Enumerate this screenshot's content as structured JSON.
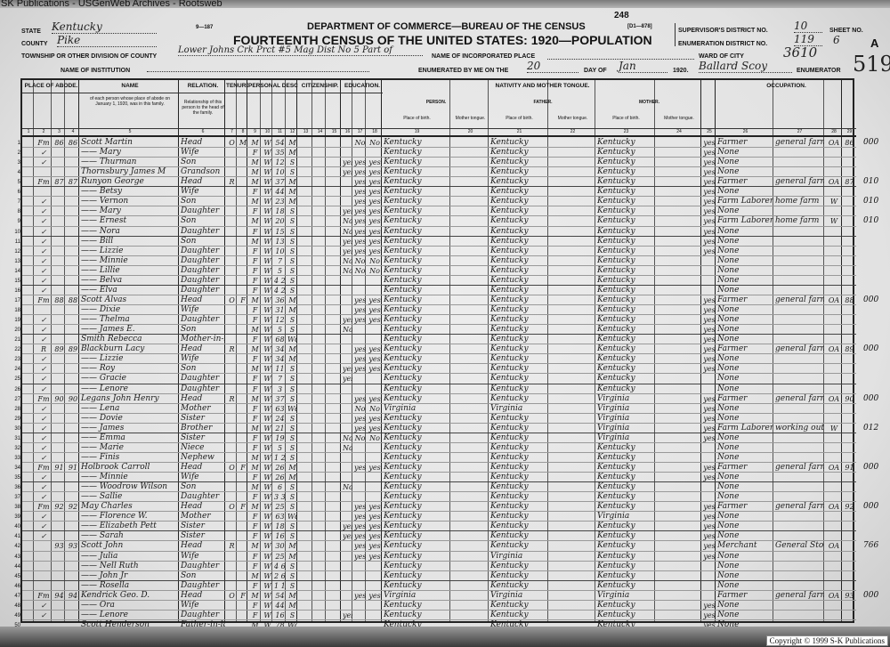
{
  "watermark": "SK Publications - USGenWeb Archives - Rootsweb",
  "copyright": "Copyright © 1999 S-K Publications",
  "form_number": "9—187",
  "stamp_number": "248",
  "form_code": "[D1—878]",
  "header": {
    "department": "DEPARTMENT OF COMMERCE—BUREAU OF THE CENSUS",
    "title": "FOURTEENTH CENSUS OF THE UNITED STATES: 1920—POPULATION",
    "state_label": "STATE",
    "state": "Kentucky",
    "county_label": "COUNTY",
    "county": "Pike",
    "township_label": "TOWNSHIP OR OTHER DIVISION OF COUNTY",
    "township": "Lower Johns Crk Prct #5 Mag Dist No 5 Part of",
    "incorporated_label": "NAME OF INCORPORATED PLACE",
    "institution_label": "NAME OF INSTITUTION",
    "enumerated_label": "ENUMERATED BY ME ON THE",
    "enumerated_day": "20",
    "day_of_label": "DAY OF",
    "month": "Jan",
    "year": "1920.",
    "enumerator": "Ballard Scoy",
    "enumerator_label": "ENUMERATOR",
    "supervisor_label": "SUPERVISOR'S DISTRICT NO.",
    "supervisor_district": "10",
    "ed_label": "ENUMERATION DISTRICT NO.",
    "enumeration_district": "119",
    "sheet_label": "SHEET NO.",
    "sheet": "6",
    "sheet_side": "A",
    "ward_label": "WARD OF CITY",
    "ward_note": "3610",
    "corner_note": "519"
  },
  "groups": [
    "PLACE OF ABODE.",
    "NAME",
    "RELATION.",
    "TENURE.",
    "PERSONAL DESCRIPTION.",
    "CITIZENSHIP.",
    "EDUCATION.",
    "NATIVITY AND MOTHER TONGUE.",
    "OCCUPATION."
  ],
  "subheads": {
    "name_desc": "of each person whose place of abode on January 1, 1920, was in this family.",
    "relation_desc": "Relationship of this person to the head of the family.",
    "person": "PERSON.",
    "father": "FATHER.",
    "mother": "MOTHER.",
    "place_of_birth": "Place of birth.",
    "mother_tongue": "Mother tongue."
  },
  "column_numbers": [
    "1",
    "2",
    "3",
    "4",
    "5",
    "6",
    "7",
    "8",
    "9",
    "10",
    "11",
    "12",
    "13",
    "14",
    "15",
    "16",
    "17",
    "18",
    "19",
    "20",
    "21",
    "22",
    "23",
    "24",
    "25",
    "26",
    "27",
    "28",
    "29"
  ],
  "row_fields": [
    "home",
    "dwelling",
    "family",
    "name",
    "relation",
    "owned",
    "mortgage",
    "sex",
    "color",
    "age",
    "marital",
    "school",
    "read",
    "write",
    "birthplace",
    "father_birthplace",
    "mother_birthplace",
    "english",
    "occupation",
    "industry",
    "class",
    "farm",
    "margin"
  ],
  "rows": [
    [
      "Fm",
      "86",
      "86",
      "Scott Martin",
      "Head",
      "O",
      "M",
      "M",
      "W",
      "54",
      "M",
      "",
      "No",
      "No",
      "Kentucky",
      "Kentucky",
      "Kentucky",
      "yes",
      "Farmer",
      "general farm",
      "OA",
      "86",
      "000"
    ],
    [
      "✓",
      "",
      "",
      "—— Mary",
      "Wife",
      "",
      "",
      "F",
      "W",
      "35",
      "M",
      "",
      "",
      "",
      "Kentucky",
      "Kentucky",
      "Kentucky",
      "yes",
      "None",
      "",
      "",
      "",
      ""
    ],
    [
      "✓",
      "",
      "",
      "—— Thurman",
      "Son",
      "",
      "",
      "M",
      "W",
      "12",
      "S",
      "yes",
      "yes",
      "yes",
      "Kentucky",
      "Kentucky",
      "Kentucky",
      "yes",
      "None",
      "",
      "",
      "",
      ""
    ],
    [
      "",
      "",
      "",
      "Thornsbury James M",
      "Grandson",
      "",
      "",
      "M",
      "W",
      "10",
      "S",
      "yes",
      "yes",
      "yes",
      "Kentucky",
      "Kentucky",
      "Kentucky",
      "yes",
      "None",
      "",
      "",
      "",
      ""
    ],
    [
      "Fm",
      "87",
      "87",
      "Runyon George",
      "Head",
      "R",
      "",
      "M",
      "W",
      "37",
      "M",
      "",
      "yes",
      "yes",
      "Kentucky",
      "Kentucky",
      "Kentucky",
      "yes",
      "Farmer",
      "general farm",
      "OA",
      "87",
      "010"
    ],
    [
      "",
      "",
      "",
      "—— Betsy",
      "Wife",
      "",
      "",
      "F",
      "W",
      "44",
      "M",
      "",
      "yes",
      "yes",
      "Kentucky",
      "Kentucky",
      "Kentucky",
      "yes",
      "None",
      "",
      "",
      "",
      ""
    ],
    [
      "✓",
      "",
      "",
      "—— Vernon",
      "Son",
      "",
      "",
      "M",
      "W",
      "23",
      "M",
      "",
      "yes",
      "yes",
      "Kentucky",
      "Kentucky",
      "Kentucky",
      "yes",
      "Farm Laborer",
      "home farm",
      "W",
      "",
      "010"
    ],
    [
      "✓",
      "",
      "",
      "—— Mary",
      "Daughter",
      "",
      "",
      "F",
      "W",
      "18",
      "S",
      "yes",
      "yes",
      "yes",
      "Kentucky",
      "Kentucky",
      "Kentucky",
      "yes",
      "None",
      "",
      "",
      "",
      ""
    ],
    [
      "✓",
      "",
      "",
      "—— Ernest",
      "Son",
      "",
      "",
      "M",
      "W",
      "20",
      "S",
      "No",
      "yes",
      "yes",
      "Kentucky",
      "Kentucky",
      "Kentucky",
      "yes",
      "Farm Laborer",
      "home farm",
      "W",
      "",
      "010"
    ],
    [
      "✓",
      "",
      "",
      "—— Nora",
      "Daughter",
      "",
      "",
      "F",
      "W",
      "15",
      "S",
      "No",
      "yes",
      "yes",
      "Kentucky",
      "Kentucky",
      "Kentucky",
      "yes",
      "None",
      "",
      "",
      "",
      ""
    ],
    [
      "✓",
      "",
      "",
      "—— Bill",
      "Son",
      "",
      "",
      "M",
      "W",
      "13",
      "S",
      "yes",
      "yes",
      "yes",
      "Kentucky",
      "Kentucky",
      "Kentucky",
      "yes",
      "None",
      "",
      "",
      "",
      ""
    ],
    [
      "✓",
      "",
      "",
      "—— Lizzie",
      "Daughter",
      "",
      "",
      "F",
      "W",
      "10",
      "S",
      "yes",
      "yes",
      "yes",
      "Kentucky",
      "Kentucky",
      "Kentucky",
      "yes",
      "None",
      "",
      "",
      "",
      ""
    ],
    [
      "✓",
      "",
      "",
      "—— Minnie",
      "Daughter",
      "",
      "",
      "F",
      "W",
      "7",
      "S",
      "No",
      "No",
      "No",
      "Kentucky",
      "Kentucky",
      "Kentucky",
      "",
      "None",
      "",
      "",
      "",
      ""
    ],
    [
      "✓",
      "",
      "",
      "—— Lillie",
      "Daughter",
      "",
      "",
      "F",
      "W",
      "5",
      "S",
      "No",
      "No",
      "No",
      "Kentucky",
      "Kentucky",
      "Kentucky",
      "",
      "None",
      "",
      "",
      "",
      ""
    ],
    [
      "✓",
      "",
      "",
      "—— Belva",
      "Daughter",
      "",
      "",
      "F",
      "W",
      "4 2/12",
      "S",
      "",
      "",
      "",
      "Kentucky",
      "Kentucky",
      "Kentucky",
      "",
      "None",
      "",
      "",
      "",
      ""
    ],
    [
      "✓",
      "",
      "",
      "—— Elva",
      "Daughter",
      "",
      "",
      "F",
      "W",
      "4 2/12",
      "S",
      "",
      "",
      "",
      "Kentucky",
      "Kentucky",
      "Kentucky",
      "",
      "None",
      "",
      "",
      "",
      ""
    ],
    [
      "Fm",
      "88",
      "88",
      "Scott Alvas",
      "Head",
      "O",
      "F",
      "M",
      "W",
      "36",
      "M",
      "",
      "yes",
      "yes",
      "Kentucky",
      "Kentucky",
      "Kentucky",
      "yes",
      "Farmer",
      "general farm",
      "OA",
      "88",
      "000"
    ],
    [
      "",
      "",
      "",
      "—— Dixie",
      "Wife",
      "",
      "",
      "F",
      "W",
      "31",
      "M",
      "",
      "yes",
      "yes",
      "Kentucky",
      "Kentucky",
      "Kentucky",
      "yes",
      "None",
      "",
      "",
      "",
      ""
    ],
    [
      "✓",
      "",
      "",
      "—— Thelma",
      "Daughter",
      "",
      "",
      "F",
      "W",
      "12",
      "S",
      "yes",
      "yes",
      "yes",
      "Kentucky",
      "Kentucky",
      "Kentucky",
      "yes",
      "None",
      "",
      "",
      "",
      ""
    ],
    [
      "✓",
      "",
      "",
      "—— James E.",
      "Son",
      "",
      "",
      "M",
      "W",
      "5",
      "S",
      "No",
      "",
      "",
      "Kentucky",
      "Kentucky",
      "Kentucky",
      "yes",
      "None",
      "",
      "",
      "",
      ""
    ],
    [
      "✓",
      "",
      "",
      "Smith Rebecca",
      "Mother-in-law",
      "",
      "",
      "F",
      "W",
      "68",
      "Wd",
      "",
      "",
      "",
      "Kentucky",
      "Kentucky",
      "Kentucky",
      "yes",
      "None",
      "",
      "",
      "",
      ""
    ],
    [
      "R",
      "89",
      "89",
      "Blackburn Lacy",
      "Head",
      "R",
      "",
      "M",
      "W",
      "34",
      "M",
      "",
      "yes",
      "yes",
      "Kentucky",
      "Kentucky",
      "Kentucky",
      "yes",
      "Farmer",
      "general farm",
      "OA",
      "89",
      "000"
    ],
    [
      "✓",
      "",
      "",
      "—— Lizzie",
      "Wife",
      "",
      "",
      "F",
      "W",
      "34",
      "M",
      "",
      "yes",
      "yes",
      "Kentucky",
      "Kentucky",
      "Kentucky",
      "yes",
      "None",
      "",
      "",
      "",
      ""
    ],
    [
      "✓",
      "",
      "",
      "—— Roy",
      "Son",
      "",
      "",
      "M",
      "W",
      "11",
      "S",
      "yes",
      "yes",
      "yes",
      "Kentucky",
      "Kentucky",
      "Kentucky",
      "yes",
      "None",
      "",
      "",
      "",
      ""
    ],
    [
      "✓",
      "",
      "",
      "—— Gracie",
      "Daughter",
      "",
      "",
      "F",
      "W",
      "7",
      "S",
      "yes",
      "",
      "",
      "Kentucky",
      "Kentucky",
      "Kentucky",
      "",
      "None",
      "",
      "",
      "",
      ""
    ],
    [
      "✓",
      "",
      "",
      "—— Lenore",
      "Daughter",
      "",
      "",
      "F",
      "W",
      "3",
      "S",
      "",
      "",
      "",
      "Kentucky",
      "Kentucky",
      "Kentucky",
      "",
      "None",
      "",
      "",
      "",
      ""
    ],
    [
      "Fm",
      "90",
      "90",
      "Legans John Henry",
      "Head",
      "R",
      "",
      "M",
      "W",
      "37",
      "S",
      "",
      "yes",
      "yes",
      "Kentucky",
      "Kentucky",
      "Virginia",
      "yes",
      "Farmer",
      "general farm",
      "OA",
      "90",
      "000"
    ],
    [
      "✓",
      "",
      "",
      "—— Lena",
      "Mother",
      "",
      "",
      "F",
      "W",
      "63",
      "Wd",
      "",
      "No",
      "No",
      "Virginia",
      "Virginia",
      "Virginia",
      "yes",
      "None",
      "",
      "",
      "",
      ""
    ],
    [
      "✓",
      "",
      "",
      "—— Dovie",
      "Sister",
      "",
      "",
      "F",
      "W",
      "24",
      "S",
      "",
      "yes",
      "yes",
      "Kentucky",
      "Kentucky",
      "Virginia",
      "yes",
      "None",
      "",
      "",
      "",
      ""
    ],
    [
      "✓",
      "",
      "",
      "—— James",
      "Brother",
      "",
      "",
      "M",
      "W",
      "21",
      "S",
      "",
      "yes",
      "yes",
      "Kentucky",
      "Kentucky",
      "Virginia",
      "yes",
      "Farm Laborer",
      "working out",
      "W",
      "",
      "012"
    ],
    [
      "✓",
      "",
      "",
      "—— Emma",
      "Sister",
      "",
      "",
      "F",
      "W",
      "19",
      "S",
      "No",
      "No",
      "No",
      "Kentucky",
      "Kentucky",
      "Virginia",
      "yes",
      "None",
      "",
      "",
      "",
      ""
    ],
    [
      "✓",
      "",
      "",
      "—— Marie",
      "Niece",
      "",
      "",
      "F",
      "W",
      "5",
      "S",
      "No",
      "",
      "",
      "Kentucky",
      "Kentucky",
      "Kentucky",
      "",
      "None",
      "",
      "",
      "",
      ""
    ],
    [
      "✓",
      "",
      "",
      "—— Finis",
      "Nephew",
      "",
      "",
      "M",
      "W",
      "1 2/12",
      "S",
      "",
      "",
      "",
      "Kentucky",
      "Kentucky",
      "Kentucky",
      "",
      "None",
      "",
      "",
      "",
      ""
    ],
    [
      "Fm",
      "91",
      "91",
      "Holbrook Carroll",
      "Head",
      "O",
      "F",
      "M",
      "W",
      "26",
      "M",
      "",
      "yes",
      "yes",
      "Kentucky",
      "Kentucky",
      "Kentucky",
      "yes",
      "Farmer",
      "general farm",
      "OA",
      "91",
      "000"
    ],
    [
      "✓",
      "",
      "",
      "—— Minnie",
      "Wife",
      "",
      "",
      "F",
      "W",
      "26",
      "M",
      "",
      "",
      "",
      "Kentucky",
      "Kentucky",
      "Kentucky",
      "yes",
      "None",
      "",
      "",
      "",
      ""
    ],
    [
      "✓",
      "",
      "",
      "—— Woodrow Wilson",
      "Son",
      "",
      "",
      "M",
      "W",
      "6",
      "S",
      "No",
      "",
      "",
      "Kentucky",
      "Kentucky",
      "Kentucky",
      "",
      "None",
      "",
      "",
      "",
      ""
    ],
    [
      "✓",
      "",
      "",
      "—— Sallie",
      "Daughter",
      "",
      "",
      "F",
      "W",
      "3 3/12",
      "S",
      "",
      "",
      "",
      "Kentucky",
      "Kentucky",
      "Kentucky",
      "",
      "None",
      "",
      "",
      "",
      ""
    ],
    [
      "Fm",
      "92",
      "92",
      "May Charles",
      "Head",
      "O",
      "F",
      "M",
      "W",
      "25",
      "S",
      "",
      "yes",
      "yes",
      "Kentucky",
      "Kentucky",
      "Kentucky",
      "yes",
      "Farmer",
      "general farm",
      "OA",
      "92",
      "000"
    ],
    [
      "✓",
      "",
      "",
      "—— Florence W.",
      "Mother",
      "",
      "",
      "F",
      "W",
      "63",
      "Wd",
      "",
      "yes",
      "yes",
      "Kentucky",
      "Kentucky",
      "Virginia",
      "yes",
      "None",
      "",
      "",
      "",
      ""
    ],
    [
      "✓",
      "",
      "",
      "—— Elizabeth Pett",
      "Sister",
      "",
      "",
      "F",
      "W",
      "18",
      "S",
      "yes",
      "yes",
      "yes",
      "Kentucky",
      "Kentucky",
      "Kentucky",
      "yes",
      "None",
      "",
      "",
      "",
      ""
    ],
    [
      "✓",
      "",
      "",
      "—— Sarah",
      "Sister",
      "",
      "",
      "F",
      "W",
      "16",
      "S",
      "yes",
      "yes",
      "yes",
      "Kentucky",
      "Kentucky",
      "Kentucky",
      "yes",
      "None",
      "",
      "",
      "",
      ""
    ],
    [
      "",
      "93",
      "93",
      "Scott John",
      "Head",
      "R",
      "",
      "M",
      "W",
      "30",
      "M",
      "",
      "yes",
      "yes",
      "Kentucky",
      "Kentucky",
      "Kentucky",
      "yes",
      "Merchant",
      "General Store",
      "OA",
      "",
      "766"
    ],
    [
      "",
      "",
      "",
      "—— Julia",
      "Wife",
      "",
      "",
      "F",
      "W",
      "25",
      "M",
      "",
      "yes",
      "yes",
      "Kentucky",
      "Virginia",
      "Kentucky",
      "yes",
      "None",
      "",
      "",
      "",
      ""
    ],
    [
      "",
      "",
      "",
      "—— Nell Ruth",
      "Daughter",
      "",
      "",
      "F",
      "W",
      "4 6/12",
      "S",
      "",
      "",
      "",
      "Kentucky",
      "Kentucky",
      "Kentucky",
      "",
      "None",
      "",
      "",
      "",
      ""
    ],
    [
      "",
      "",
      "",
      "—— John Jr",
      "Son",
      "",
      "",
      "M",
      "W",
      "2 6/12",
      "S",
      "",
      "",
      "",
      "Kentucky",
      "Kentucky",
      "Kentucky",
      "",
      "None",
      "",
      "",
      "",
      ""
    ],
    [
      "",
      "",
      "",
      "—— Rosella",
      "Daughter",
      "",
      "",
      "F",
      "W",
      "1 1/12",
      "S",
      "",
      "",
      "",
      "Kentucky",
      "Kentucky",
      "Kentucky",
      "",
      "None",
      "",
      "",
      "",
      ""
    ],
    [
      "Fm",
      "94",
      "94",
      "Kendrick Geo. D.",
      "Head",
      "O",
      "F",
      "M",
      "W",
      "54",
      "M",
      "",
      "yes",
      "yes",
      "Virginia",
      "Virginia",
      "Virginia",
      "",
      "Farmer",
      "general farm",
      "OA",
      "93",
      "000"
    ],
    [
      "✓",
      "",
      "",
      "—— Ora",
      "Wife",
      "",
      "",
      "F",
      "W",
      "44",
      "M",
      "",
      "",
      "",
      "Kentucky",
      "Kentucky",
      "Kentucky",
      "yes",
      "None",
      "",
      "",
      "",
      ""
    ],
    [
      "✓",
      "",
      "",
      "—— Lenore",
      "Daughter",
      "",
      "",
      "F",
      "W",
      "16",
      "S",
      "yes",
      "",
      "",
      "Kentucky",
      "Kentucky",
      "Kentucky",
      "yes",
      "None",
      "",
      "",
      "",
      ""
    ],
    [
      "",
      "",
      "",
      "Scott Henderson",
      "Father-in-law",
      "",
      "",
      "M",
      "W",
      "78",
      "Wd",
      "",
      "",
      "",
      "Kentucky",
      "Kentucky",
      "Kentucky",
      "yes",
      "None",
      "",
      "",
      "",
      ""
    ]
  ]
}
